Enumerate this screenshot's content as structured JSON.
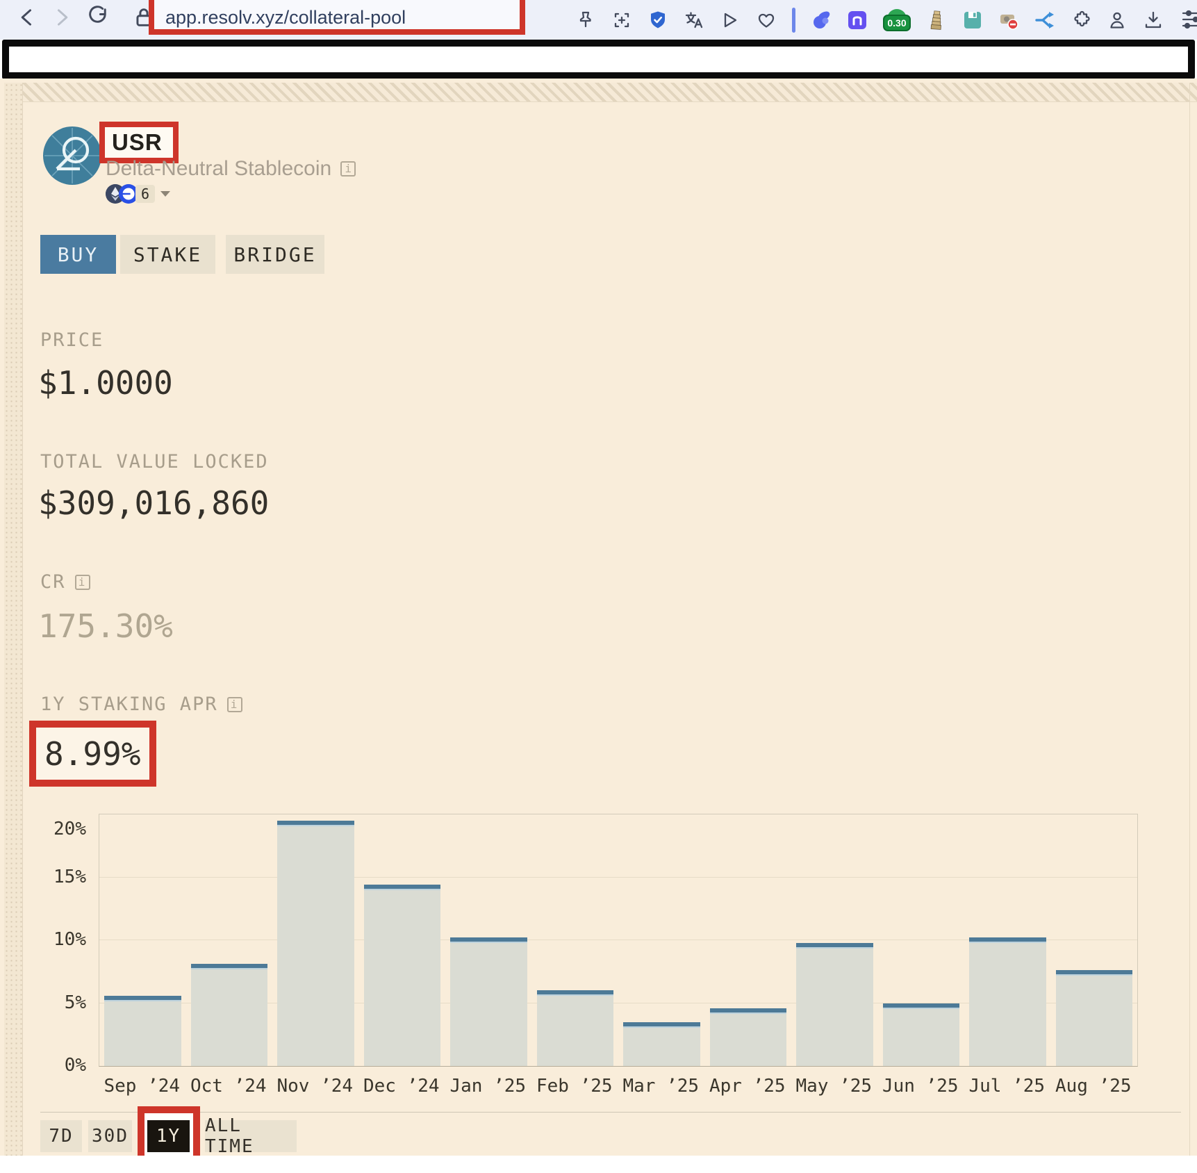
{
  "browser": {
    "url": "app.resolv.xyz/collateral-pool",
    "extension_badge": "0.30",
    "toolbar_icons": [
      "back",
      "forward",
      "reload",
      "lock",
      "pin",
      "screenshot",
      "shield-check",
      "translate",
      "send",
      "heart",
      "rabbit-wallet",
      "n-app",
      "price-badge",
      "tower-app",
      "save-app",
      "blocker-app",
      "flow-app",
      "extensions",
      "profile",
      "download",
      "sliders"
    ]
  },
  "token": {
    "symbol": "USR",
    "subtitle": "Delta-Neutral Stablecoin",
    "networks_count": "6",
    "info_glyph": "i"
  },
  "actions": {
    "buy": "BUY",
    "stake": "STAKE",
    "bridge": "BRIDGE"
  },
  "stats": [
    {
      "label": "PRICE",
      "value": "$1.0000"
    },
    {
      "label": "TOTAL VALUE LOCKED",
      "value": "$309,016,860"
    },
    {
      "label": "CR",
      "value": "175.30%"
    },
    {
      "label": "1Y STAKING APR",
      "value": "8.99%"
    }
  ],
  "chart_data": {
    "type": "bar",
    "title": "1Y staking APR by month",
    "categories": [
      "Sep ’24",
      "Oct ’24",
      "Nov ’24",
      "Dec ’24",
      "Jan ’25",
      "Feb ’25",
      "Mar ’25",
      "Apr ’25",
      "May ’25",
      "Jun ’25",
      "Jul ’25",
      "Aug ’25"
    ],
    "values": [
      5.6,
      8.1,
      19.5,
      14.4,
      10.2,
      6.0,
      3.5,
      4.6,
      9.8,
      5.0,
      10.2,
      7.6
    ],
    "yticks": [
      "0%",
      "5%",
      "10%",
      "15%",
      "20%"
    ],
    "ylim": [
      0,
      20
    ],
    "grid": true,
    "legend": null
  },
  "time_filter": {
    "options": [
      "7D",
      "30D",
      "1Y",
      "ALL TIME"
    ],
    "selected": "1Y"
  },
  "colors": {
    "annotation_red": "#ce352a",
    "page_background": "#f9edda",
    "buy_blue": "#4a7ba0",
    "bar_fill": "#dadcd3",
    "bar_top": "#4d7a97",
    "selected_black": "#19150f"
  }
}
